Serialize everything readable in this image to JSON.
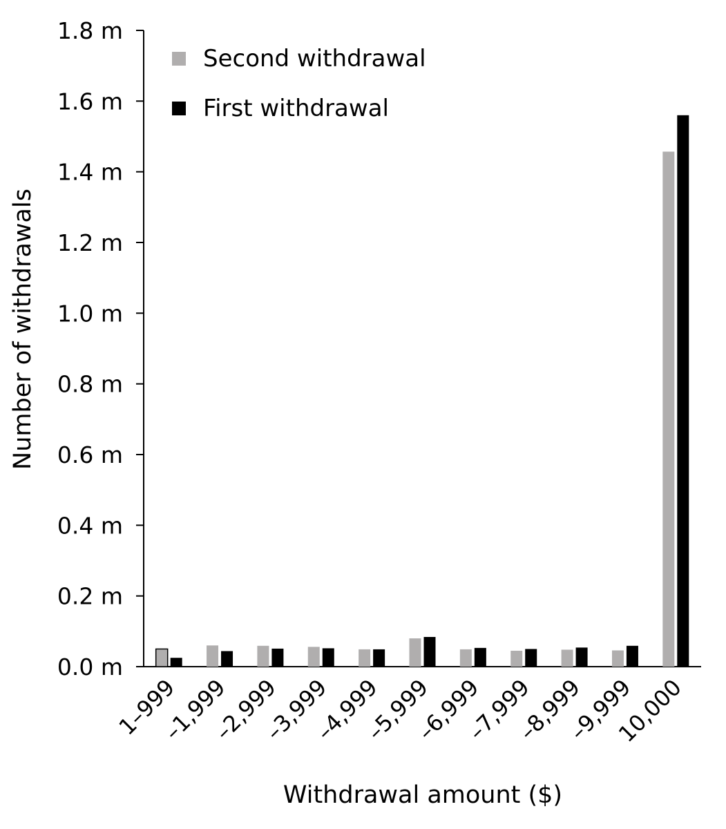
{
  "chart_data": {
    "type": "bar",
    "title": "",
    "xlabel": "Withdrawal amount ($)",
    "ylabel": "Number of withdrawals",
    "ylim": [
      0,
      1.8
    ],
    "y_unit_suffix": " m",
    "yticks": [
      0.0,
      0.2,
      0.4,
      0.6,
      0.8,
      1.0,
      1.2,
      1.4,
      1.6,
      1.8
    ],
    "ytick_labels": [
      "0.0 m",
      "0.2 m",
      "0.4 m",
      "0.6 m",
      "0.8 m",
      "1.0 m",
      "1.2 m",
      "1.4 m",
      "1.6 m",
      "1.8 m"
    ],
    "categories": [
      "1–999",
      "–1,999",
      "–2,999",
      "–3,999",
      "–4,999",
      "–5,999",
      "–6,999",
      "–7,999",
      "–8,999",
      "–9,999",
      "10,000"
    ],
    "series": [
      {
        "name": "Second withdrawal",
        "color": "#b0aeae",
        "values": [
          0.05,
          0.06,
          0.059,
          0.056,
          0.049,
          0.08,
          0.049,
          0.045,
          0.048,
          0.046,
          1.457
        ]
      },
      {
        "name": "First withdrawal",
        "color": "#000000",
        "values": [
          0.025,
          0.044,
          0.051,
          0.052,
          0.049,
          0.084,
          0.053,
          0.05,
          0.054,
          0.059,
          1.56
        ]
      }
    ],
    "legend_position": "top-left",
    "legend_order": [
      0,
      1
    ],
    "grid": false
  }
}
